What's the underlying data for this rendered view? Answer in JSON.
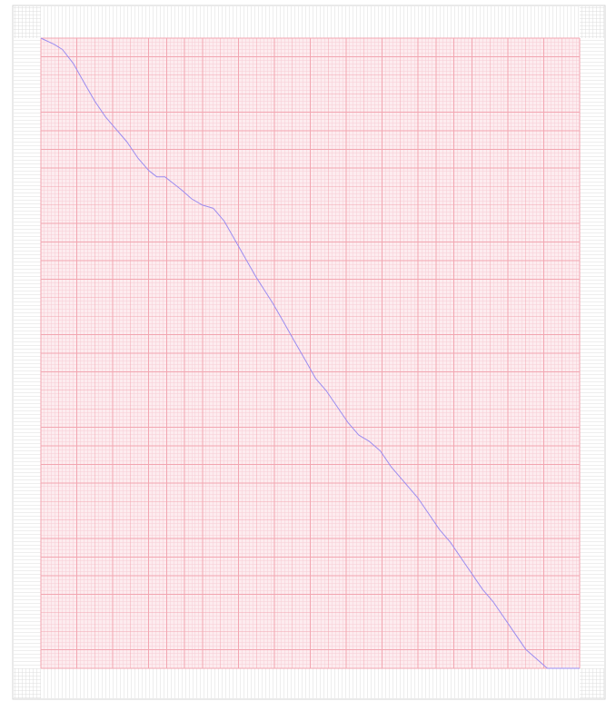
{
  "chart_data": {
    "type": "line",
    "title": "",
    "xlabel": "",
    "ylabel": "",
    "grid": true,
    "xlim": [
      0,
      100
    ],
    "ylim": [
      0,
      100
    ],
    "series": [
      {
        "x": [
          0,
          2.5,
          4,
          6,
          8,
          10,
          12,
          14,
          16,
          18,
          20,
          21.5,
          23,
          24.5,
          26,
          28,
          30,
          32,
          34,
          36,
          38,
          40,
          41.5,
          43,
          45,
          47,
          49,
          51,
          53,
          55,
          57,
          59,
          61,
          63,
          65,
          67,
          68.5,
          70,
          72,
          74,
          76,
          78,
          80,
          82,
          84,
          86,
          88,
          90,
          92,
          94,
          96,
          98,
          99,
          99.5,
          100
        ],
        "y": [
          100,
          99,
          98.2,
          96,
          93,
          90,
          87.5,
          85.5,
          83.5,
          81,
          79,
          78,
          78,
          77,
          76,
          74.5,
          73.5,
          73,
          71,
          68,
          65,
          62,
          60,
          58,
          55,
          52,
          49,
          46,
          44,
          41.5,
          39,
          37,
          36,
          34.5,
          32,
          30,
          28.5,
          27,
          24.5,
          22,
          20,
          17.5,
          15,
          12.5,
          10.5,
          8,
          5.5,
          3,
          1.5,
          0,
          0,
          0,
          0,
          0,
          0
        ]
      }
    ],
    "colors": {
      "background": "#ffffff",
      "frame": "#d6d6d6",
      "plot_area": "#fdecef",
      "grid_major": "#f2a6b1",
      "grid_minor": "#f7cdd4",
      "outer_tick": "#dcdcdc",
      "line": "#9b8cf0"
    }
  }
}
